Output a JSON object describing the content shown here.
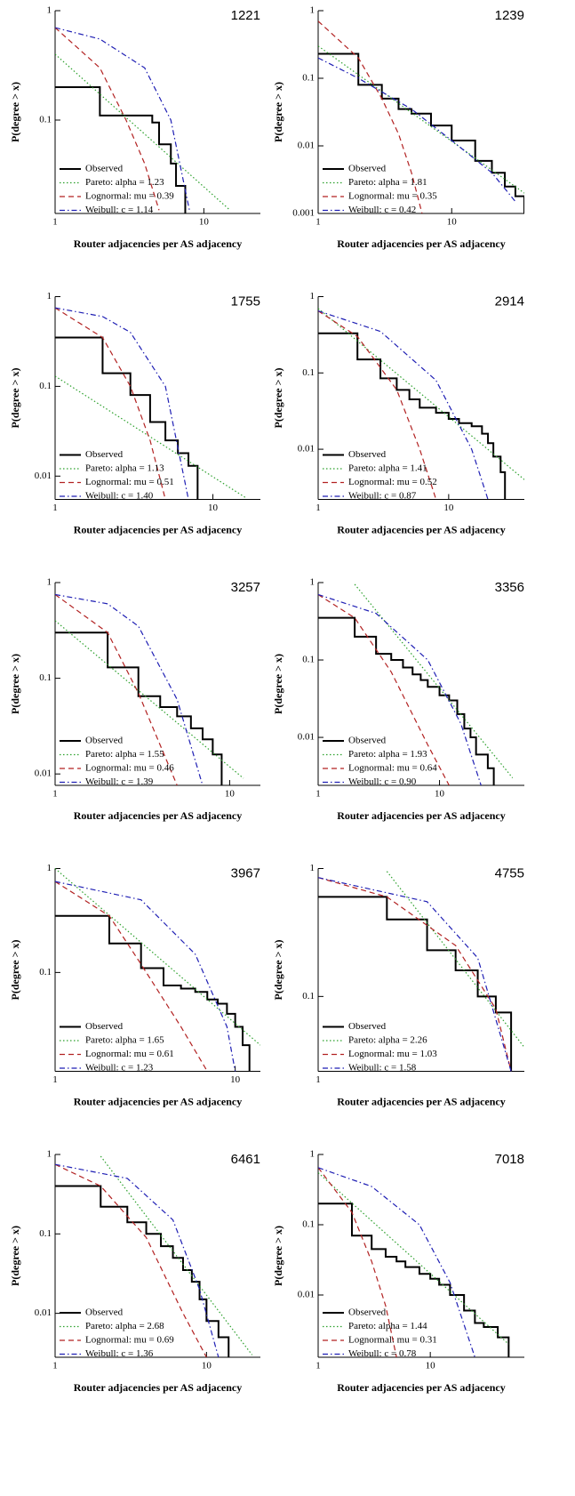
{
  "chart_data": [
    {
      "type": "line",
      "title": "1221",
      "xlabel": "Router adjacencies per AS adjacency",
      "ylabel": "P(degree > x)",
      "xscale": "log",
      "yscale": "log",
      "xlim": [
        1,
        24
      ],
      "ylim": [
        0.014,
        1
      ],
      "xticks": [
        1,
        10
      ],
      "yticks": [
        1,
        0.1
      ],
      "legend": "lower left",
      "series": [
        {
          "name": "Observed",
          "color": "#000000",
          "style": "steps",
          "x": [
            1,
            2,
            4.5,
            5,
            6,
            6.5,
            7.5
          ],
          "values": [
            0.2,
            0.11,
            0.095,
            0.06,
            0.04,
            0.025,
            0.014
          ]
        },
        {
          "name": "Pareto: alpha = 1.23",
          "color": "#2ca02c",
          "style": "dotted",
          "x": [
            1,
            15
          ],
          "values": [
            0.4,
            0.015
          ]
        },
        {
          "name": "Lognormal: mu = 0.39",
          "color": "#b22222",
          "style": "dashed",
          "x": [
            1,
            2,
            3,
            4,
            5
          ],
          "values": [
            0.7,
            0.3,
            0.1,
            0.04,
            0.015
          ]
        },
        {
          "name": "Weibull: c = 1.14",
          "color": "#1f1fb4",
          "style": "dashdot",
          "x": [
            1,
            2,
            4,
            6,
            8
          ],
          "values": [
            0.7,
            0.55,
            0.3,
            0.1,
            0.015
          ]
        }
      ]
    },
    {
      "type": "line",
      "title": "1239",
      "xlabel": "Router adjacencies per AS adjacency",
      "ylabel": "P(degree > x)",
      "xscale": "log",
      "yscale": "log",
      "xlim": [
        1,
        35
      ],
      "ylim": [
        0.001,
        1
      ],
      "xticks": [
        1,
        10
      ],
      "yticks": [
        1,
        0.1,
        0.01,
        0.001
      ],
      "legend": "lower left",
      "series": [
        {
          "name": "Observed",
          "color": "#000000",
          "style": "steps",
          "x": [
            1,
            2,
            3,
            4,
            5,
            7,
            10,
            15,
            20,
            25,
            30,
            35
          ],
          "values": [
            0.23,
            0.08,
            0.05,
            0.035,
            0.03,
            0.02,
            0.012,
            0.006,
            0.004,
            0.0025,
            0.0018,
            0.001
          ]
        },
        {
          "name": "Pareto: alpha = 1.81",
          "color": "#2ca02c",
          "style": "dotted",
          "x": [
            1,
            35
          ],
          "values": [
            0.3,
            0.002
          ]
        },
        {
          "name": "Lognormal: mu = 0.35",
          "color": "#b22222",
          "style": "dashed",
          "x": [
            1,
            2,
            3,
            4,
            5,
            6
          ],
          "values": [
            0.7,
            0.2,
            0.05,
            0.015,
            0.004,
            0.001
          ]
        },
        {
          "name": "Weibull: c = 0.42",
          "color": "#1f1fb4",
          "style": "dashdot",
          "x": [
            1,
            2,
            5,
            10,
            20,
            30
          ],
          "values": [
            0.2,
            0.1,
            0.035,
            0.012,
            0.004,
            0.0015
          ]
        }
      ]
    },
    {
      "type": "line",
      "title": "1755",
      "xlabel": "Router adjacencies per AS adjacency",
      "ylabel": "P(degree > x)",
      "xscale": "log",
      "yscale": "log",
      "xlim": [
        1,
        20
      ],
      "ylim": [
        0.0055,
        1
      ],
      "xticks": [
        1,
        10
      ],
      "yticks": [
        1,
        0.1,
        0.01
      ],
      "legend": "lower left",
      "series": [
        {
          "name": "Observed",
          "color": "#000000",
          "style": "steps",
          "x": [
            1,
            2,
            3,
            4,
            5,
            6,
            7,
            8
          ],
          "values": [
            0.35,
            0.14,
            0.08,
            0.04,
            0.025,
            0.018,
            0.013,
            0.0055
          ]
        },
        {
          "name": "Pareto: alpha = 1.13",
          "color": "#2ca02c",
          "style": "dotted",
          "x": [
            1,
            16
          ],
          "values": [
            0.13,
            0.0058
          ]
        },
        {
          "name": "Lognormal: mu = 0.51",
          "color": "#b22222",
          "style": "dashed",
          "x": [
            1,
            2,
            3,
            4,
            5
          ],
          "values": [
            0.75,
            0.35,
            0.1,
            0.025,
            0.0055
          ]
        },
        {
          "name": "Weibull: c = 1.40",
          "color": "#1f1fb4",
          "style": "dashdot",
          "x": [
            1,
            2,
            3,
            5,
            7
          ],
          "values": [
            0.75,
            0.6,
            0.4,
            0.1,
            0.0055
          ]
        }
      ]
    },
    {
      "type": "line",
      "title": "2914",
      "xlabel": "Router adjacencies per AS adjacency",
      "ylabel": "P(degree > x)",
      "xscale": "log",
      "yscale": "log",
      "xlim": [
        1,
        38
      ],
      "ylim": [
        0.0022,
        1
      ],
      "xticks": [
        1,
        10
      ],
      "yticks": [
        1,
        0.1,
        0.01
      ],
      "legend": "lower left",
      "series": [
        {
          "name": "Observed",
          "color": "#000000",
          "style": "steps",
          "x": [
            1,
            2,
            3,
            4,
            5,
            6,
            8,
            10,
            12,
            15,
            18,
            20,
            22,
            25,
            27
          ],
          "values": [
            0.33,
            0.15,
            0.085,
            0.06,
            0.045,
            0.035,
            0.03,
            0.025,
            0.022,
            0.02,
            0.016,
            0.012,
            0.008,
            0.005,
            0.0022
          ]
        },
        {
          "name": "Pareto: alpha = 1.41",
          "color": "#2ca02c",
          "style": "dotted",
          "x": [
            1,
            38
          ],
          "values": [
            0.7,
            0.004
          ]
        },
        {
          "name": "Lognormal: mu = 0.52",
          "color": "#b22222",
          "style": "dashed",
          "x": [
            1,
            2,
            4,
            6,
            8
          ],
          "values": [
            0.65,
            0.3,
            0.06,
            0.01,
            0.0022
          ]
        },
        {
          "name": "Weibull: c = 0.87",
          "color": "#1f1fb4",
          "style": "dashdot",
          "x": [
            1,
            3,
            8,
            15,
            20
          ],
          "values": [
            0.65,
            0.35,
            0.08,
            0.01,
            0.0022
          ]
        }
      ]
    },
    {
      "type": "line",
      "title": "3257",
      "xlabel": "Router adjacencies per AS adjacency",
      "ylabel": "P(degree > x)",
      "xscale": "log",
      "yscale": "log",
      "xlim": [
        1,
        15
      ],
      "ylim": [
        0.0076,
        1
      ],
      "xticks": [
        1,
        10
      ],
      "yticks": [
        1,
        0.1,
        0.01
      ],
      "legend": "lower left",
      "series": [
        {
          "name": "Observed",
          "color": "#000000",
          "style": "steps",
          "x": [
            1,
            2,
            3,
            4,
            5,
            6,
            7,
            8,
            9
          ],
          "values": [
            0.3,
            0.13,
            0.065,
            0.05,
            0.04,
            0.03,
            0.023,
            0.016,
            0.0076
          ]
        },
        {
          "name": "Pareto: alpha = 1.55",
          "color": "#2ca02c",
          "style": "dotted",
          "x": [
            1,
            12
          ],
          "values": [
            0.4,
            0.009
          ]
        },
        {
          "name": "Lognormal: mu = 0.46",
          "color": "#b22222",
          "style": "dashed",
          "x": [
            1,
            2,
            3,
            4,
            5
          ],
          "values": [
            0.75,
            0.3,
            0.07,
            0.02,
            0.0076
          ]
        },
        {
          "name": "Weibull: c = 1.39",
          "color": "#1f1fb4",
          "style": "dashdot",
          "x": [
            1,
            2,
            3,
            5,
            7
          ],
          "values": [
            0.75,
            0.6,
            0.35,
            0.06,
            0.0076
          ]
        }
      ]
    },
    {
      "type": "line",
      "title": "3356",
      "xlabel": "Router adjacencies per AS adjacency",
      "ylabel": "P(degree > x)",
      "xscale": "log",
      "yscale": "log",
      "xlim": [
        1,
        50
      ],
      "ylim": [
        0.0024,
        1
      ],
      "xticks": [
        1,
        10
      ],
      "yticks": [
        1,
        0.1,
        0.01
      ],
      "legend": "lower left",
      "series": [
        {
          "name": "Observed",
          "color": "#000000",
          "style": "steps",
          "x": [
            1,
            2,
            3,
            4,
            5,
            6,
            7,
            8,
            10,
            12,
            14,
            16,
            18,
            20,
            25,
            28
          ],
          "values": [
            0.35,
            0.2,
            0.12,
            0.1,
            0.08,
            0.065,
            0.055,
            0.045,
            0.035,
            0.03,
            0.02,
            0.013,
            0.01,
            0.006,
            0.004,
            0.0024
          ]
        },
        {
          "name": "Pareto: alpha = 1.93",
          "color": "#2ca02c",
          "style": "dotted",
          "x": [
            2,
            40
          ],
          "values": [
            0.95,
            0.003
          ]
        },
        {
          "name": "Lognormal: mu = 0.64",
          "color": "#b22222",
          "style": "dashed",
          "x": [
            1,
            2,
            4,
            8,
            12
          ],
          "values": [
            0.7,
            0.35,
            0.07,
            0.008,
            0.0024
          ]
        },
        {
          "name": "Weibull: c = 0.90",
          "color": "#1f1fb4",
          "style": "dashdot",
          "x": [
            1,
            3,
            8,
            15,
            22
          ],
          "values": [
            0.7,
            0.4,
            0.1,
            0.015,
            0.0024
          ]
        }
      ]
    },
    {
      "type": "line",
      "title": "3967",
      "xlabel": "Router adjacencies per AS adjacency",
      "ylabel": "P(degree > x)",
      "xscale": "log",
      "yscale": "log",
      "xlim": [
        1,
        13.8
      ],
      "ylim": [
        0.0112,
        1
      ],
      "xticks": [
        1,
        10
      ],
      "yticks": [
        1,
        0.1
      ],
      "legend": "lower left",
      "series": [
        {
          "name": "Observed",
          "color": "#000000",
          "style": "steps",
          "x": [
            1,
            2,
            3,
            4,
            5,
            6,
            7,
            8,
            9,
            10,
            11,
            12
          ],
          "values": [
            0.35,
            0.19,
            0.11,
            0.075,
            0.07,
            0.065,
            0.055,
            0.05,
            0.04,
            0.03,
            0.02,
            0.0112
          ]
        },
        {
          "name": "Pareto: alpha = 1.65",
          "color": "#2ca02c",
          "style": "dotted",
          "x": [
            1,
            13.8
          ],
          "values": [
            1,
            0.02
          ]
        },
        {
          "name": "Lognormal: mu = 0.61",
          "color": "#b22222",
          "style": "dashed",
          "x": [
            1,
            2,
            3,
            5,
            7
          ],
          "values": [
            0.75,
            0.35,
            0.12,
            0.03,
            0.0112
          ]
        },
        {
          "name": "Weibull: c = 1.23",
          "color": "#1f1fb4",
          "style": "dashdot",
          "x": [
            1,
            3,
            6,
            9,
            10
          ],
          "values": [
            0.75,
            0.5,
            0.15,
            0.03,
            0.0112
          ]
        }
      ]
    },
    {
      "type": "line",
      "title": "4755",
      "xlabel": "Router adjacencies per AS adjacency",
      "ylabel": "P(degree > x)",
      "xscale": "log",
      "yscale": "log",
      "xlim": [
        1,
        8
      ],
      "ylim": [
        0.026,
        1
      ],
      "xticks": [
        1
      ],
      "yticks": [
        1,
        0.1
      ],
      "legend": "lower left",
      "series": [
        {
          "name": "Observed",
          "color": "#000000",
          "style": "steps",
          "x": [
            1,
            2,
            3,
            4,
            5,
            6,
            7
          ],
          "values": [
            0.6,
            0.4,
            0.23,
            0.16,
            0.1,
            0.075,
            0.026
          ]
        },
        {
          "name": "Pareto: alpha = 2.26",
          "color": "#2ca02c",
          "style": "dotted",
          "x": [
            2,
            8
          ],
          "values": [
            0.95,
            0.04
          ]
        },
        {
          "name": "Lognormal: mu = 1.03",
          "color": "#b22222",
          "style": "dashed",
          "x": [
            1,
            2,
            4,
            6,
            7
          ],
          "values": [
            0.85,
            0.6,
            0.25,
            0.08,
            0.026
          ]
        },
        {
          "name": "Weibull: c = 1.58",
          "color": "#1f1fb4",
          "style": "dashdot",
          "x": [
            1,
            3,
            5,
            7
          ],
          "values": [
            0.85,
            0.55,
            0.2,
            0.026
          ]
        }
      ]
    },
    {
      "type": "line",
      "title": "6461",
      "xlabel": "Router adjacencies per AS adjacency",
      "ylabel": "P(degree > x)",
      "xscale": "log",
      "yscale": "log",
      "xlim": [
        1,
        22.7
      ],
      "ylim": [
        0.0028,
        1
      ],
      "xticks": [
        1,
        10
      ],
      "yticks": [
        1,
        0.1,
        0.01
      ],
      "legend": "lower left",
      "series": [
        {
          "name": "Observed",
          "color": "#000000",
          "style": "steps",
          "x": [
            1,
            2,
            3,
            4,
            5,
            6,
            7,
            8,
            9,
            10,
            12,
            14
          ],
          "values": [
            0.4,
            0.22,
            0.14,
            0.1,
            0.07,
            0.05,
            0.035,
            0.025,
            0.015,
            0.008,
            0.005,
            0.0028
          ]
        },
        {
          "name": "Pareto: alpha = 2.68",
          "color": "#2ca02c",
          "style": "dotted",
          "x": [
            2,
            20
          ],
          "values": [
            0.95,
            0.003
          ]
        },
        {
          "name": "Lognormal: mu = 0.69",
          "color": "#b22222",
          "style": "dashed",
          "x": [
            1,
            2,
            4,
            7,
            10
          ],
          "values": [
            0.75,
            0.4,
            0.09,
            0.01,
            0.0028
          ]
        },
        {
          "name": "Weibull: c = 1.36",
          "color": "#1f1fb4",
          "style": "dashdot",
          "x": [
            1,
            3,
            6,
            9,
            12
          ],
          "values": [
            0.75,
            0.5,
            0.15,
            0.02,
            0.0028
          ]
        }
      ]
    },
    {
      "type": "line",
      "title": "7018",
      "xlabel": "Router adjacencies per AS adjacency",
      "ylabel": "P(degree > x)",
      "xscale": "log",
      "yscale": "log",
      "xlim": [
        1,
        69
      ],
      "ylim": [
        0.0013,
        1
      ],
      "xticks": [
        1,
        10
      ],
      "yticks": [
        1,
        0.1,
        0.01
      ],
      "legend": "lower left",
      "series": [
        {
          "name": "Observed",
          "color": "#000000",
          "style": "steps",
          "x": [
            1,
            2,
            3,
            4,
            5,
            6,
            8,
            10,
            12,
            15,
            20,
            25,
            30,
            40,
            50
          ],
          "values": [
            0.2,
            0.07,
            0.045,
            0.035,
            0.03,
            0.025,
            0.02,
            0.017,
            0.014,
            0.01,
            0.006,
            0.004,
            0.0035,
            0.0025,
            0.0013
          ]
        },
        {
          "name": "Pareto: alpha = 1.44",
          "color": "#2ca02c",
          "style": "dotted",
          "x": [
            1,
            50
          ],
          "values": [
            0.55,
            0.002
          ]
        },
        {
          "name": "Lognormal: mu = 0.31",
          "color": "#b22222",
          "style": "dashed",
          "x": [
            1,
            2,
            3,
            4,
            5
          ],
          "values": [
            0.65,
            0.15,
            0.03,
            0.007,
            0.0013
          ]
        },
        {
          "name": "Weibull: c = 0.78",
          "color": "#1f1fb4",
          "style": "dashdot",
          "x": [
            1,
            3,
            8,
            15,
            25
          ],
          "values": [
            0.65,
            0.35,
            0.1,
            0.015,
            0.0013
          ]
        }
      ]
    }
  ]
}
